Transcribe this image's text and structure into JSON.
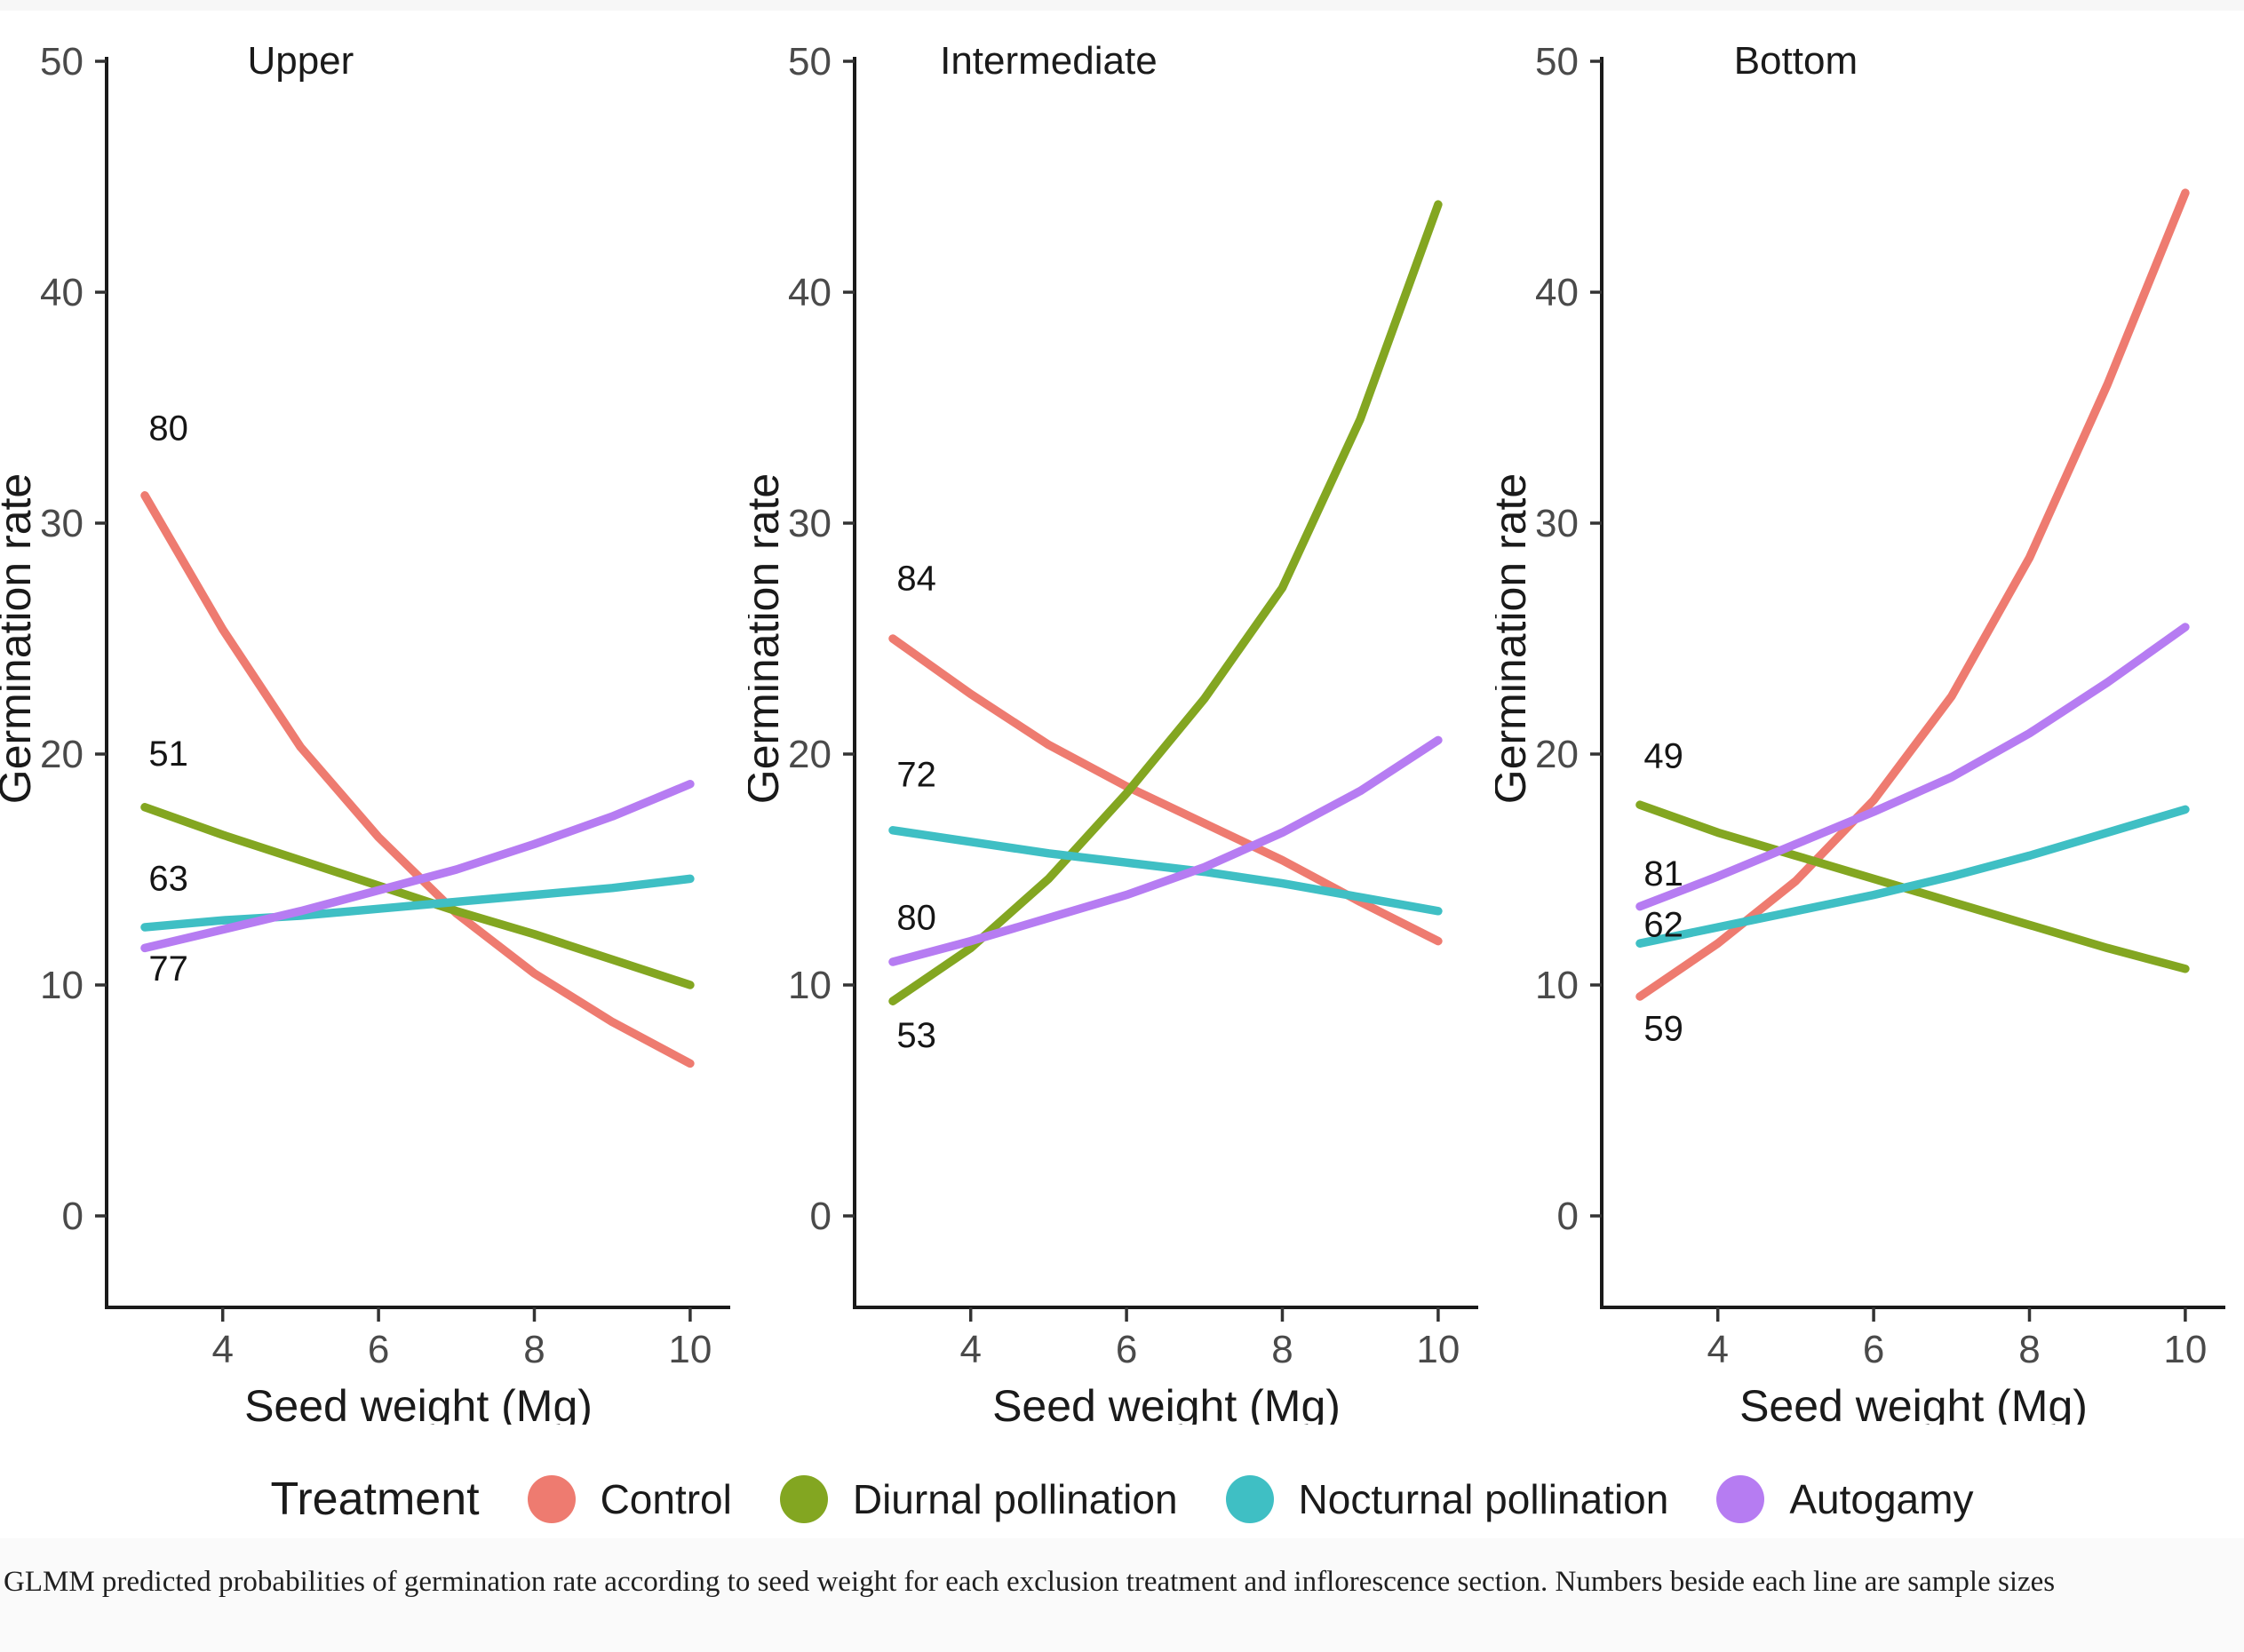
{
  "caption": "GLMM predicted probabilities of germination rate according to seed weight for each exclusion treatment and inflorescence section. Numbers beside each line are sample sizes",
  "legend": {
    "title": "Treatment",
    "items": [
      {
        "label": "Control",
        "color": "#EE7B70"
      },
      {
        "label": "Diurnal pollination",
        "color": "#83A621"
      },
      {
        "label": "Nocturnal pollination",
        "color": "#3FBFC4"
      },
      {
        "label": "Autogamy",
        "color": "#B67CF2"
      }
    ]
  },
  "chart_data": {
    "type": "line",
    "xlabel": "Seed weight (Mg)",
    "ylabel": "Germination rate",
    "x": [
      3,
      4,
      5,
      6,
      7,
      8,
      9,
      10
    ],
    "xlim": [
      2.5,
      10.5
    ],
    "ylim": [
      0,
      50
    ],
    "x_ticks": [
      4,
      6,
      8,
      10
    ],
    "y_ticks": [
      0,
      10,
      20,
      30,
      40,
      50
    ],
    "grid": false,
    "legend_position": "bottom",
    "facets": [
      {
        "title": "Upper",
        "series": [
          {
            "name": "Control",
            "sample_size": 80,
            "color": "#EE7B70",
            "values": [
              31.2,
              25.4,
              20.3,
              16.4,
              13.1,
              10.5,
              8.4,
              6.6
            ],
            "label_x": 3.05,
            "label_y": 33.6
          },
          {
            "name": "Diurnal pollination",
            "sample_size": 51,
            "color": "#83A621",
            "values": [
              17.7,
              16.5,
              15.4,
              14.3,
              13.2,
              12.2,
              11.1,
              10.0
            ],
            "label_x": 3.05,
            "label_y": 19.5
          },
          {
            "name": "Nocturnal pollination",
            "sample_size": 63,
            "color": "#3FBFC4",
            "values": [
              12.5,
              12.8,
              13.0,
              13.3,
              13.6,
              13.9,
              14.2,
              14.6
            ],
            "label_x": 3.05,
            "label_y": 14.1
          },
          {
            "name": "Autogamy",
            "sample_size": 77,
            "color": "#B67CF2",
            "values": [
              11.6,
              12.4,
              13.2,
              14.1,
              15.0,
              16.1,
              17.3,
              18.7
            ],
            "label_x": 3.05,
            "label_y": 10.2
          }
        ]
      },
      {
        "title": "Intermediate",
        "series": [
          {
            "name": "Control",
            "sample_size": 84,
            "color": "#EE7B70",
            "values": [
              25.0,
              22.6,
              20.4,
              18.6,
              17.0,
              15.4,
              13.6,
              11.9
            ],
            "label_x": 3.05,
            "label_y": 27.1
          },
          {
            "name": "Diurnal pollination",
            "sample_size": 53,
            "color": "#83A621",
            "values": [
              9.3,
              11.6,
              14.6,
              18.3,
              22.4,
              27.2,
              34.5,
              43.8
            ],
            "label_x": 3.05,
            "label_y": 7.3
          },
          {
            "name": "Nocturnal pollination",
            "sample_size": 72,
            "color": "#3FBFC4",
            "values": [
              16.7,
              16.2,
              15.7,
              15.3,
              14.9,
              14.4,
              13.8,
              13.2
            ],
            "label_x": 3.05,
            "label_y": 18.6
          },
          {
            "name": "Autogamy",
            "sample_size": 80,
            "color": "#B67CF2",
            "values": [
              11.0,
              11.9,
              12.9,
              13.9,
              15.1,
              16.6,
              18.4,
              20.6
            ],
            "label_x": 3.05,
            "label_y": 12.4
          }
        ]
      },
      {
        "title": "Bottom",
        "series": [
          {
            "name": "Control",
            "sample_size": 59,
            "color": "#EE7B70",
            "values": [
              9.5,
              11.8,
              14.5,
              18.0,
              22.5,
              28.5,
              36.0,
              44.3
            ],
            "label_x": 3.05,
            "label_y": 7.6
          },
          {
            "name": "Diurnal pollination",
            "sample_size": 49,
            "color": "#83A621",
            "values": [
              17.8,
              16.6,
              15.6,
              14.6,
              13.6,
              12.6,
              11.6,
              10.7
            ],
            "label_x": 3.05,
            "label_y": 19.4
          },
          {
            "name": "Nocturnal pollination",
            "sample_size": 62,
            "color": "#3FBFC4",
            "values": [
              11.8,
              12.5,
              13.2,
              13.9,
              14.7,
              15.6,
              16.6,
              17.6
            ],
            "label_x": 3.05,
            "label_y": 12.1
          },
          {
            "name": "Autogamy",
            "sample_size": 81,
            "color": "#B67CF2",
            "values": [
              13.4,
              14.7,
              16.1,
              17.5,
              19.0,
              20.9,
              23.1,
              25.5
            ],
            "label_x": 3.05,
            "label_y": 14.3
          }
        ]
      }
    ]
  }
}
